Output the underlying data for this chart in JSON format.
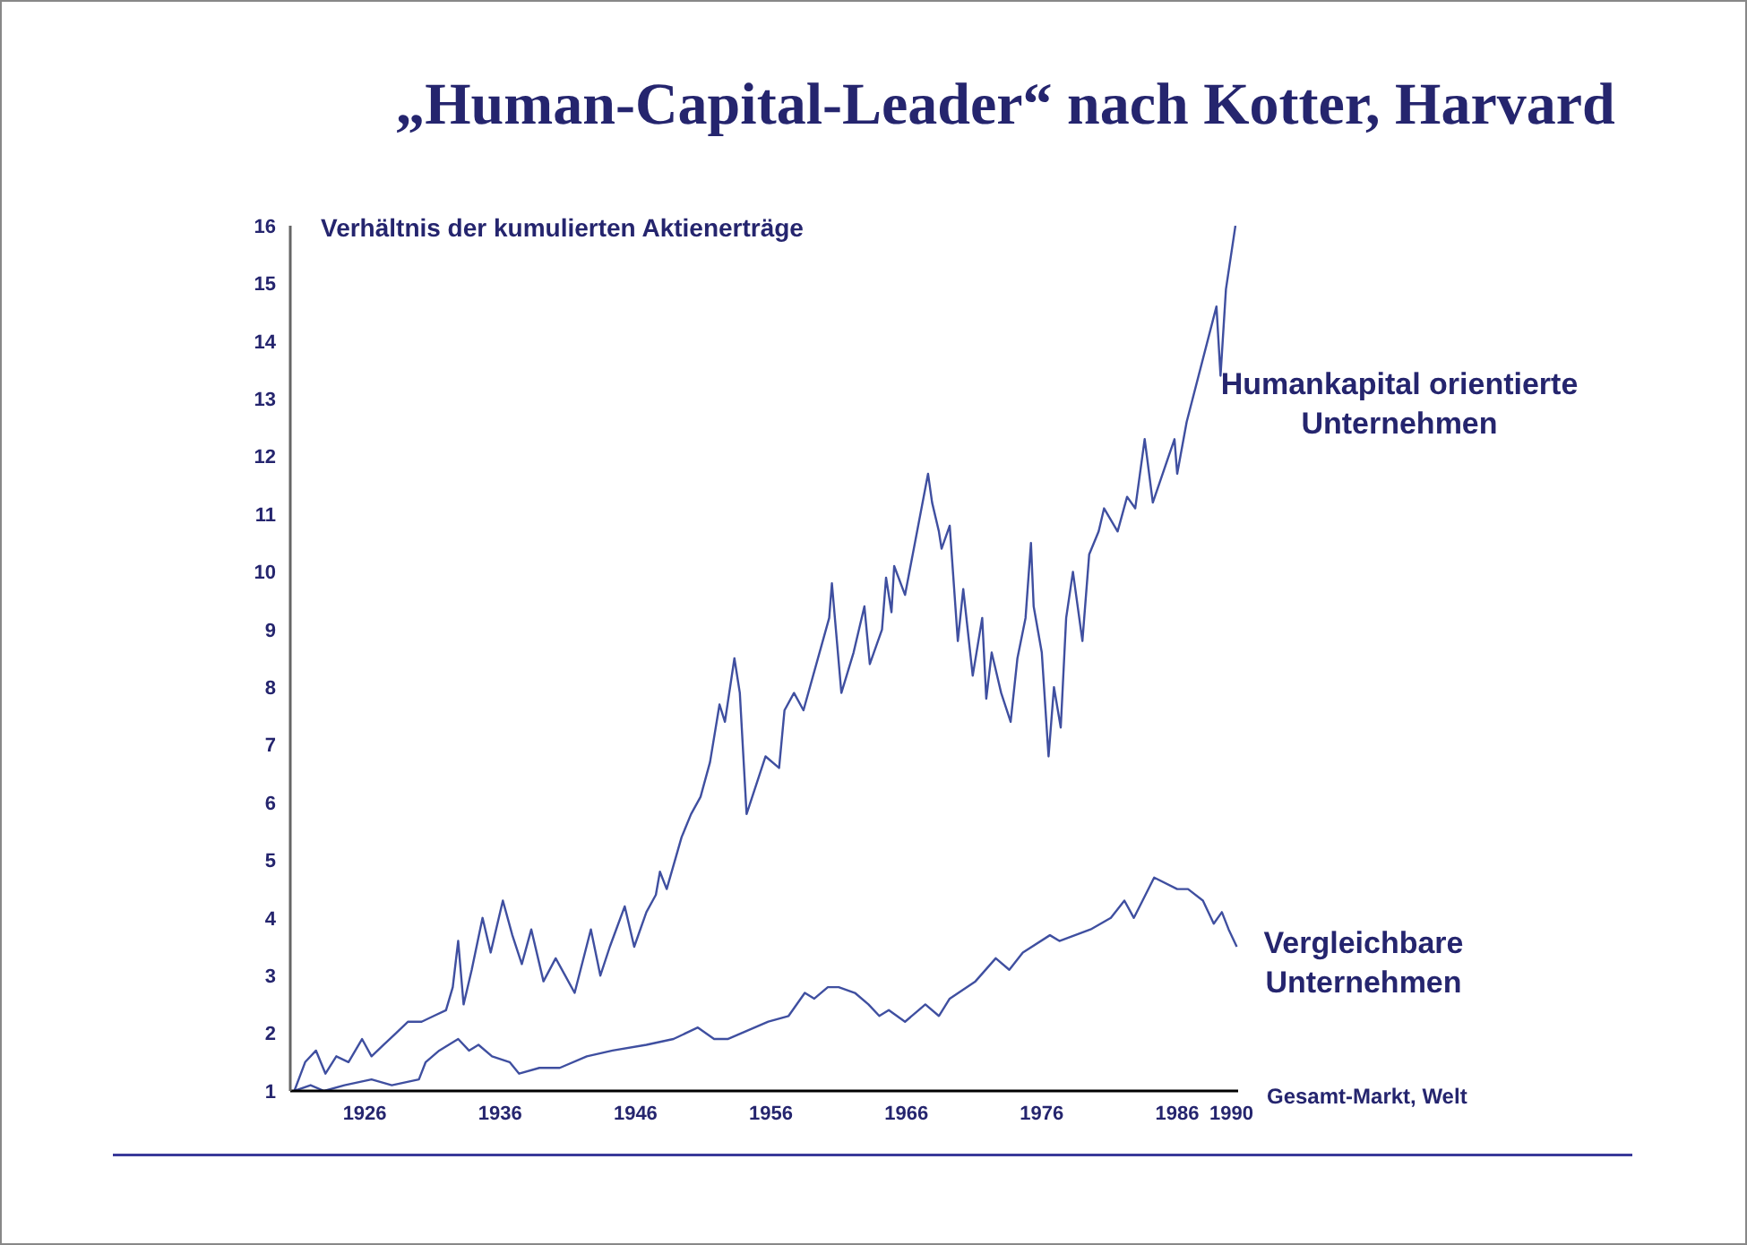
{
  "chart_data": {
    "type": "line",
    "title": "„Human-Capital-Leader“ nach Kotter, Harvard",
    "xlabel": "Gesamt-Markt, Welt",
    "ylabel": "Verhältnis der kumulierten Aktienerträge",
    "xlim": [
      1920.5,
      1990.5
    ],
    "xticks": [
      1926,
      1936,
      1946,
      1956,
      1966,
      1976,
      1986,
      1990
    ],
    "ylim": [
      1,
      16
    ],
    "yticks": [
      1,
      2,
      3,
      4,
      5,
      6,
      7,
      8,
      9,
      10,
      11,
      12,
      13,
      14,
      15,
      16
    ],
    "series": [
      {
        "name": "Humankapital orientierte Unternehmen",
        "color": "#3f4fa0",
        "x": [
          1920.8,
          1921.6,
          1922.4,
          1923.1,
          1923.9,
          1924.8,
          1925.8,
          1926.5,
          1927.4,
          1928.3,
          1929.2,
          1930.2,
          1931.1,
          1932.0,
          1932.5,
          1932.9,
          1933.3,
          1933.9,
          1934.7,
          1935.3,
          1936.2,
          1936.9,
          1937.6,
          1938.3,
          1939.2,
          1940.1,
          1940.8,
          1941.5,
          1942.7,
          1943.4,
          1944.1,
          1945.2,
          1945.9,
          1946.8,
          1947.5,
          1947.8,
          1948.3,
          1949.4,
          1950.1,
          1950.8,
          1951.5,
          1952.2,
          1952.6,
          1953.3,
          1953.7,
          1954.2,
          1955.6,
          1956.6,
          1957.0,
          1957.7,
          1958.4,
          1960.3,
          1960.5,
          1961.2,
          1962.1,
          1962.9,
          1963.3,
          1964.2,
          1964.5,
          1964.9,
          1965.1,
          1965.9,
          1967.6,
          1967.9,
          1968.4,
          1968.6,
          1969.2,
          1969.8,
          1970.2,
          1970.9,
          1971.6,
          1971.9,
          1972.3,
          1973.0,
          1973.7,
          1974.2,
          1974.8,
          1975.2,
          1975.4,
          1976.0,
          1976.5,
          1976.9,
          1977.4,
          1977.8,
          1978.3,
          1979.0,
          1979.5,
          1980.2,
          1980.6,
          1981.6,
          1982.3,
          1982.9,
          1983.6,
          1984.2,
          1985.8,
          1986.0,
          1986.7,
          1988.9,
          1989.2,
          1989.6,
          1990.3
        ],
        "values": [
          1.0,
          1.5,
          1.7,
          1.3,
          1.6,
          1.5,
          1.9,
          1.6,
          1.8,
          2.0,
          2.2,
          2.2,
          2.3,
          2.4,
          2.8,
          3.6,
          2.5,
          3.1,
          4.0,
          3.4,
          4.3,
          3.7,
          3.2,
          3.8,
          2.9,
          3.3,
          3.0,
          2.7,
          3.8,
          3.0,
          3.5,
          4.2,
          3.5,
          4.1,
          4.4,
          4.8,
          4.5,
          5.4,
          5.8,
          6.1,
          6.7,
          7.7,
          7.4,
          8.5,
          7.9,
          5.8,
          6.8,
          6.6,
          7.6,
          7.9,
          7.6,
          9.2,
          9.8,
          7.9,
          8.6,
          9.4,
          8.4,
          9.0,
          9.9,
          9.3,
          10.1,
          9.6,
          11.7,
          11.2,
          10.7,
          10.4,
          10.8,
          8.8,
          9.7,
          8.2,
          9.2,
          7.8,
          8.6,
          7.9,
          7.4,
          8.5,
          9.2,
          10.5,
          9.4,
          8.6,
          6.8,
          8.0,
          7.3,
          9.2,
          10.0,
          8.8,
          10.3,
          10.7,
          11.1,
          10.7,
          11.3,
          11.1,
          12.3,
          11.2,
          12.3,
          11.7,
          12.6,
          14.6,
          13.4,
          14.9,
          16.0
        ]
      },
      {
        "name": "Vergleichbare Unternehmen",
        "color": "#3f4fa0",
        "x": [
          1920.8,
          1922.0,
          1923.0,
          1924.5,
          1926.5,
          1928.0,
          1930.0,
          1930.5,
          1931.5,
          1932.2,
          1932.9,
          1933.7,
          1934.4,
          1935.4,
          1936.7,
          1937.4,
          1938.9,
          1940.4,
          1942.4,
          1944.3,
          1946.8,
          1948.8,
          1950.6,
          1951.8,
          1952.8,
          1953.8,
          1955.8,
          1957.3,
          1958.5,
          1959.2,
          1960.2,
          1961.0,
          1962.2,
          1963.2,
          1964.0,
          1964.7,
          1965.9,
          1966.9,
          1967.4,
          1968.4,
          1969.2,
          1971.1,
          1972.6,
          1973.6,
          1974.6,
          1976.6,
          1977.3,
          1979.6,
          1981.1,
          1982.1,
          1982.8,
          1984.3,
          1986.0,
          1986.8,
          1987.9,
          1988.7,
          1989.3,
          1989.8,
          1990.4
        ],
        "values": [
          1.0,
          1.1,
          1.0,
          1.1,
          1.2,
          1.1,
          1.2,
          1.5,
          1.7,
          1.8,
          1.9,
          1.7,
          1.8,
          1.6,
          1.5,
          1.3,
          1.4,
          1.4,
          1.6,
          1.7,
          1.8,
          1.9,
          2.1,
          1.9,
          1.9,
          2.0,
          2.2,
          2.3,
          2.7,
          2.6,
          2.8,
          2.8,
          2.7,
          2.5,
          2.3,
          2.4,
          2.2,
          2.4,
          2.5,
          2.3,
          2.6,
          2.9,
          3.3,
          3.1,
          3.4,
          3.7,
          3.6,
          3.8,
          4.0,
          4.3,
          4.0,
          4.7,
          4.5,
          4.5,
          4.3,
          3.9,
          4.1,
          3.8,
          3.5
        ]
      }
    ]
  }
}
